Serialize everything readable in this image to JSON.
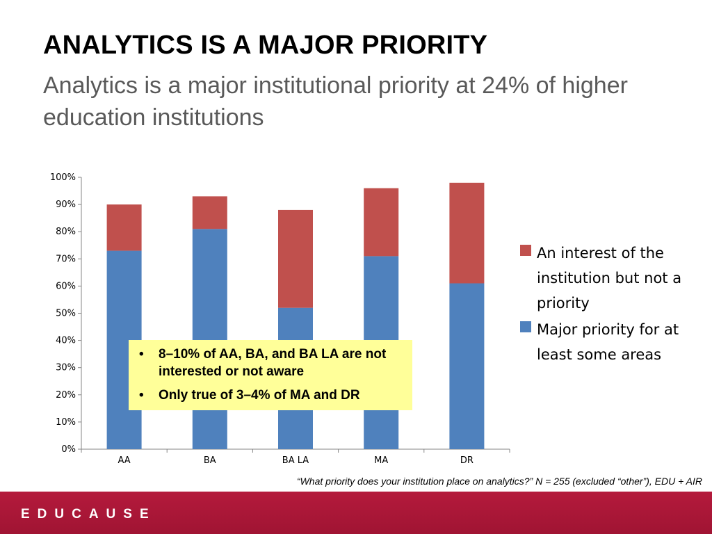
{
  "slide": {
    "title": "ANALYTICS IS A MAJOR PRIORITY",
    "subtitle": "Analytics is a major institutional priority at 24% of higher education institutions",
    "source": "“What priority does your institution place on analytics?” N = 255 (excluded “other”), EDU + AIR",
    "logo": "EDUCAUSE",
    "callout": [
      "8–10% of AA, BA, and BA LA are not interested or not aware",
      "Only true of 3–4% of MA and DR"
    ]
  },
  "colors": {
    "major": "#4f81bd",
    "interest": "#c0504d",
    "brand": "#b41a3c",
    "callout_bg": "#ffff99"
  },
  "chart_data": {
    "type": "bar",
    "stacked": true,
    "categories": [
      "AA",
      "BA",
      "BA LA",
      "MA",
      "DR"
    ],
    "series": [
      {
        "name": "Major priority for at least some areas",
        "values": [
          73,
          81,
          52,
          71,
          61
        ]
      },
      {
        "name": "An interest of the institution but not a priority",
        "values": [
          17,
          12,
          36,
          25,
          37
        ]
      }
    ],
    "ylim": [
      0,
      100
    ],
    "yticks": [
      "0%",
      "10%",
      "20%",
      "30%",
      "40%",
      "50%",
      "60%",
      "70%",
      "80%",
      "90%",
      "100%"
    ],
    "ylabel": "",
    "xlabel": "",
    "legend": {
      "placement": "right",
      "entries": [
        "An interest of the institution but not a priority",
        "Major priority for at least some areas"
      ]
    },
    "grid": false
  }
}
